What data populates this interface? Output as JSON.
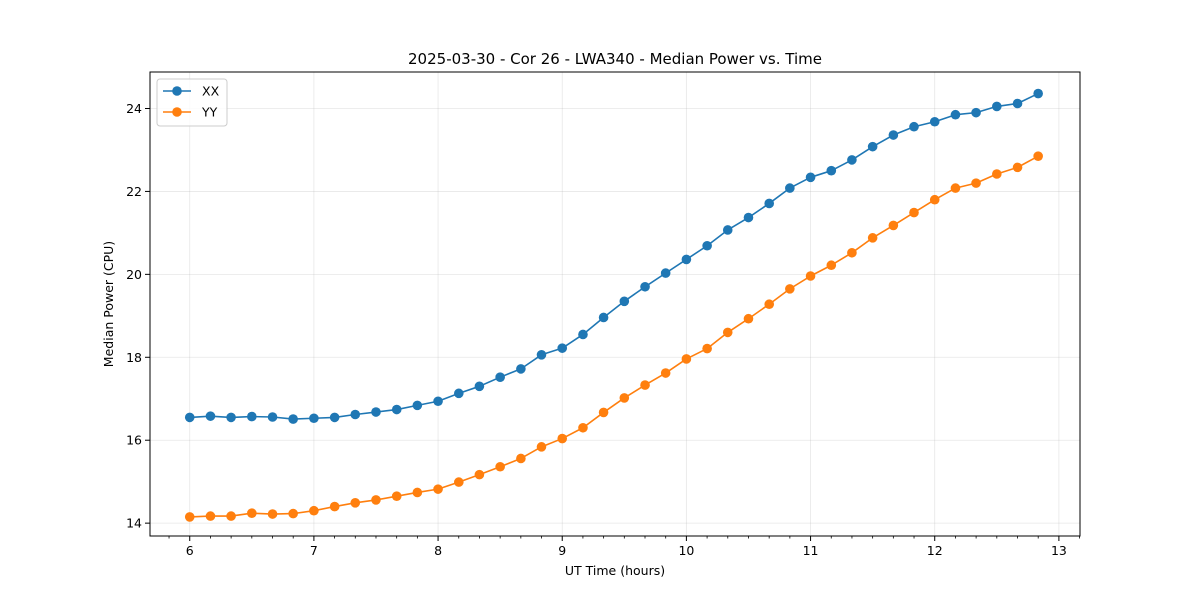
{
  "chart_data": {
    "type": "line",
    "title": "2025-03-30 - Cor 26 - LWA340 - Median Power vs. Time",
    "xlabel": "UT Time (hours)",
    "ylabel": "Median Power (CPU)",
    "xlim": [
      5.68,
      13.17
    ],
    "ylim": [
      13.69,
      24.88
    ],
    "xticks": [
      6,
      7,
      8,
      9,
      10,
      11,
      12,
      13
    ],
    "xtick_labels": [
      "6",
      "7",
      "8",
      "9",
      "10",
      "11",
      "12",
      "13"
    ],
    "yticks": [
      14,
      16,
      18,
      20,
      22,
      24
    ],
    "ytick_labels": [
      "14",
      "16",
      "18",
      "20",
      "22",
      "24"
    ],
    "grid": true,
    "legend_position": "top-left",
    "x": [
      6.0,
      6.167,
      6.333,
      6.5,
      6.667,
      6.833,
      7.0,
      7.167,
      7.333,
      7.5,
      7.667,
      7.833,
      8.0,
      8.167,
      8.333,
      8.5,
      8.667,
      8.833,
      9.0,
      9.167,
      9.333,
      9.5,
      9.667,
      9.833,
      10.0,
      10.167,
      10.333,
      10.5,
      10.667,
      10.833,
      11.0,
      11.167,
      11.333,
      11.5,
      11.667,
      11.833,
      12.0,
      12.167,
      12.333,
      12.5,
      12.667,
      12.833
    ],
    "series": [
      {
        "name": "XX",
        "color": "#1f77b4",
        "values": [
          16.55,
          16.58,
          16.55,
          16.57,
          16.56,
          16.51,
          16.53,
          16.55,
          16.62,
          16.68,
          16.74,
          16.84,
          16.94,
          17.13,
          17.3,
          17.52,
          17.72,
          18.06,
          18.22,
          18.55,
          18.96,
          19.35,
          19.7,
          20.03,
          20.36,
          20.69,
          21.07,
          21.37,
          21.71,
          22.08,
          22.34,
          22.5,
          22.76,
          23.08,
          23.36,
          23.56,
          23.68,
          23.85,
          23.9,
          24.05,
          24.12,
          24.36
        ]
      },
      {
        "name": "YY",
        "color": "#ff7f0e",
        "values": [
          14.15,
          14.17,
          14.17,
          14.24,
          14.22,
          14.23,
          14.3,
          14.4,
          14.49,
          14.56,
          14.65,
          14.74,
          14.82,
          14.99,
          15.17,
          15.36,
          15.56,
          15.84,
          16.04,
          16.3,
          16.67,
          17.02,
          17.33,
          17.62,
          17.96,
          18.21,
          18.6,
          18.93,
          19.28,
          19.65,
          19.96,
          20.22,
          20.52,
          20.88,
          21.18,
          21.49,
          21.8,
          22.08,
          22.2,
          22.42,
          22.58,
          22.85
        ]
      }
    ]
  }
}
